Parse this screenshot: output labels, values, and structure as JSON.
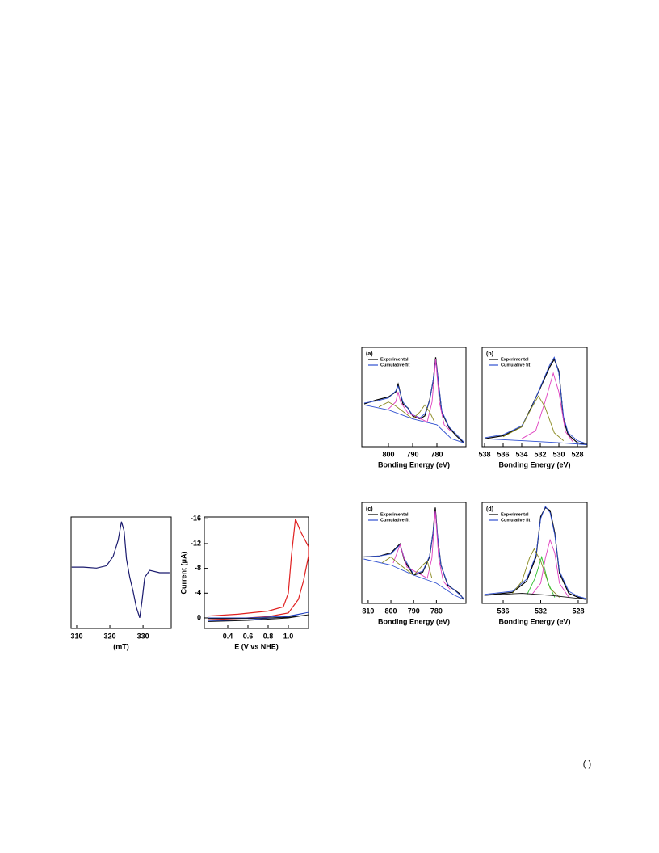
{
  "chart_data": [
    {
      "type": "line",
      "xlabel": "(mT)",
      "xlim": [
        308.3,
        338.5
      ],
      "ylim": [
        -1.2,
        1.2
      ],
      "xticks": [
        310,
        320,
        330
      ],
      "series": [
        {
          "color": "#1a1a6e",
          "x": [
            308.5,
            312,
            316,
            319,
            321,
            322.5,
            323.5,
            324.3,
            325,
            326,
            327,
            328,
            329,
            329.7,
            330.5,
            332,
            335,
            338
          ],
          "values": [
            0.12,
            0.12,
            0.1,
            0.15,
            0.35,
            0.7,
            1.1,
            0.9,
            0.3,
            -0.1,
            -0.4,
            -0.75,
            -0.97,
            -0.6,
            -0.1,
            0.05,
            0.0,
            0.0
          ]
        }
      ]
    },
    {
      "type": "line",
      "xlabel": "E (V vs NHE)",
      "ylabel": "Current (μA)",
      "xlim": [
        0.168,
        1.2
      ],
      "ylim": [
        1.7,
        -16.3
      ],
      "xticks": [
        0.4,
        0.6,
        0.8,
        {
          "value": 1,
          "label": "1.0"
        }
      ],
      "yticks": [
        -16,
        -12,
        -8,
        -4,
        0
      ],
      "series": [
        {
          "color": "#e02020",
          "x": [
            0.2,
            0.5,
            0.8,
            0.95,
            1.0,
            1.03,
            1.07,
            1.12,
            1.2,
            1.2,
            1.15,
            1.1,
            1.0,
            0.8,
            0.5,
            0.2
          ],
          "values": [
            -0.3,
            -0.6,
            -1.1,
            -1.8,
            -4,
            -10,
            -16,
            -14,
            -11.5,
            -10,
            -6,
            -3,
            -0.8,
            -0.2,
            0.1,
            0.3
          ]
        },
        {
          "color": "#1f3fbf",
          "x": [
            0.2,
            0.6,
            1.0,
            1.2,
            1.0,
            0.6,
            0.2
          ],
          "values": [
            0,
            0,
            -0.3,
            -0.9,
            -0.2,
            0.3,
            0.5
          ]
        },
        {
          "color": "#111111",
          "x": [
            0.2,
            0.6,
            1.0,
            1.2,
            1.0,
            0.6,
            0.2
          ],
          "values": [
            0.1,
            0.1,
            -0.1,
            -0.5,
            0,
            0.4,
            0.6
          ]
        }
      ]
    },
    {
      "type": "line",
      "annotation": "(a)",
      "xlabel": "Bonding Energy (eV)",
      "xlim": [
        811,
        768
      ],
      "ylim": [
        0,
        100
      ],
      "xticks": [
        800,
        790,
        780
      ],
      "series": [
        {
          "name": "Experimental",
          "color": "#000000",
          "x": [
            810,
            805,
            800,
            797,
            796,
            794,
            792,
            790,
            787,
            785,
            783,
            781.5,
            780.5,
            779.5,
            778,
            775,
            772,
            769
          ],
          "values": [
            43,
            47,
            50,
            55,
            63,
            43,
            39,
            31,
            28,
            31,
            47,
            67,
            90,
            67,
            35,
            19,
            11,
            4
          ]
        },
        {
          "name": "Cumulative fit",
          "color": "#3050d0",
          "x": [
            810,
            805,
            800,
            797,
            796,
            794,
            790,
            787,
            785,
            783,
            781.5,
            780.5,
            779.5,
            778,
            775,
            769
          ],
          "values": [
            44,
            46,
            49,
            56,
            61,
            45,
            32,
            29,
            33,
            46,
            68,
            88,
            68,
            36,
            20,
            5
          ]
        },
        {
          "color": "#e040c0",
          "x": [
            800,
            797,
            796,
            795,
            792,
            784,
            782,
            780.5,
            779,
            777,
            774
          ],
          "values": [
            38,
            45,
            55,
            45,
            34,
            25,
            45,
            88,
            45,
            22,
            15
          ]
        },
        {
          "color": "#8a8a20",
          "x": [
            804,
            800,
            797,
            790,
            787,
            785,
            783,
            781
          ],
          "values": [
            40,
            45,
            41,
            28,
            35,
            42,
            35,
            25
          ]
        },
        {
          "color": "#3050d0",
          "x": [
            810,
            800,
            790,
            785,
            780,
            777,
            774,
            769
          ],
          "values": [
            42,
            37,
            28,
            25,
            22,
            15,
            8,
            4
          ]
        }
      ]
    },
    {
      "type": "line",
      "annotation": "(b)",
      "xlabel": "Bonding Energy (eV)",
      "xlim": [
        538.26,
        526.96
      ],
      "ylim": [
        0,
        100
      ],
      "xticks": [
        538,
        536,
        534,
        532,
        530,
        528
      ],
      "series": [
        {
          "name": "Experimental",
          "color": "#000000",
          "x": [
            538,
            536,
            534,
            533,
            532,
            531,
            530.5,
            530,
            529.5,
            529,
            528,
            527
          ],
          "values": [
            8,
            11,
            20,
            39,
            59,
            80,
            88,
            76,
            27,
            12,
            4,
            2
          ]
        },
        {
          "name": "Cumulative fit",
          "color": "#3050d0",
          "x": [
            538,
            536,
            534,
            533,
            532,
            531,
            530.5,
            530,
            529.5,
            529,
            528,
            527
          ],
          "values": [
            9,
            12,
            21,
            38,
            60,
            82,
            90,
            74,
            30,
            14,
            6,
            3
          ]
        },
        {
          "color": "#e040c0",
          "x": [
            534,
            532.5,
            531.5,
            530.6,
            530,
            529.3,
            528.5
          ],
          "values": [
            8,
            16,
            45,
            74,
            55,
            15,
            5
          ]
        },
        {
          "color": "#8a8a20",
          "x": [
            536,
            534,
            533,
            532.2,
            531.5,
            530.5,
            529.5
          ],
          "values": [
            10,
            20,
            38,
            51,
            40,
            14,
            6
          ]
        },
        {
          "color": "#3050d0",
          "x": [
            538,
            534,
            530,
            527
          ],
          "values": [
            8,
            6,
            4,
            2
          ]
        }
      ]
    },
    {
      "type": "line",
      "annotation": "(c)",
      "xlabel": "Bonding Energy (eV)",
      "xlim": [
        812.8,
        767
      ],
      "ylim": [
        0,
        100
      ],
      "xticks": [
        810,
        800,
        790,
        780
      ],
      "series": [
        {
          "name": "Experimental",
          "color": "#000000",
          "x": [
            812,
            805,
            800,
            796,
            794,
            790,
            786,
            783,
            781.5,
            780.5,
            779.5,
            778,
            775,
            770,
            768
          ],
          "values": [
            46,
            47,
            50,
            59,
            42,
            28,
            31,
            46,
            70,
            95,
            66,
            38,
            18,
            10,
            4
          ]
        },
        {
          "name": "Cumulative fit",
          "color": "#3050d0",
          "x": [
            812,
            805,
            800,
            796,
            794,
            790,
            786,
            783,
            781.5,
            780.5,
            779.5,
            778,
            775,
            768
          ],
          "values": [
            46,
            47,
            49,
            58,
            44,
            29,
            32,
            47,
            70,
            92,
            67,
            38,
            19,
            5
          ]
        },
        {
          "color": "#e040c0",
          "x": [
            799,
            796,
            793,
            784,
            782,
            780.5,
            779,
            777,
            774
          ],
          "values": [
            40,
            58,
            36,
            25,
            45,
            92,
            45,
            22,
            14
          ]
        },
        {
          "color": "#8a8a20",
          "x": [
            804,
            800,
            797,
            790,
            786,
            784,
            782
          ],
          "values": [
            40,
            46,
            40,
            28,
            38,
            42,
            25
          ]
        },
        {
          "color": "#3050d0",
          "x": [
            812,
            800,
            790,
            785,
            780,
            776,
            772,
            768
          ],
          "values": [
            44,
            38,
            28,
            24,
            20,
            14,
            8,
            4
          ]
        }
      ]
    },
    {
      "type": "line",
      "annotation": "(d)",
      "xlabel": "Bonding Energy (eV)",
      "xlim": [
        538.24,
        527.05
      ],
      "ylim": [
        0,
        100
      ],
      "xticks": [
        536,
        532,
        528
      ],
      "series": [
        {
          "name": "Experimental",
          "color": "#000000",
          "x": [
            538,
            535,
            533.5,
            532.5,
            532,
            531.5,
            531,
            530.5,
            530,
            529,
            528,
            527.2
          ],
          "values": [
            8,
            11,
            22,
            46,
            86,
            95,
            92,
            70,
            30,
            10,
            6,
            4
          ]
        },
        {
          "name": "Cumulative fit",
          "color": "#3050d0",
          "x": [
            538,
            535,
            533.5,
            532.5,
            532,
            531.5,
            531,
            530.5,
            530,
            529,
            528,
            527.2
          ],
          "values": [
            9,
            12,
            24,
            48,
            84,
            96,
            90,
            68,
            32,
            12,
            7,
            5
          ]
        },
        {
          "color": "#8a8a20",
          "x": [
            535,
            534,
            533.2,
            532.7,
            532,
            531,
            530
          ],
          "values": [
            10,
            22,
            45,
            54,
            42,
            15,
            6
          ]
        },
        {
          "color": "#30c030",
          "x": [
            533.5,
            532.6,
            531.9,
            531.2,
            530.5
          ],
          "values": [
            8,
            25,
            46,
            20,
            6
          ]
        },
        {
          "color": "#e040c0",
          "x": [
            533,
            532,
            531.5,
            531,
            530.5,
            530,
            529
          ],
          "values": [
            8,
            20,
            45,
            63,
            50,
            20,
            6
          ]
        },
        {
          "color": "#222222",
          "x": [
            538,
            534,
            531,
            528,
            527.2
          ],
          "values": [
            8,
            10,
            8,
            5,
            4
          ]
        }
      ]
    }
  ],
  "footer": "( )"
}
